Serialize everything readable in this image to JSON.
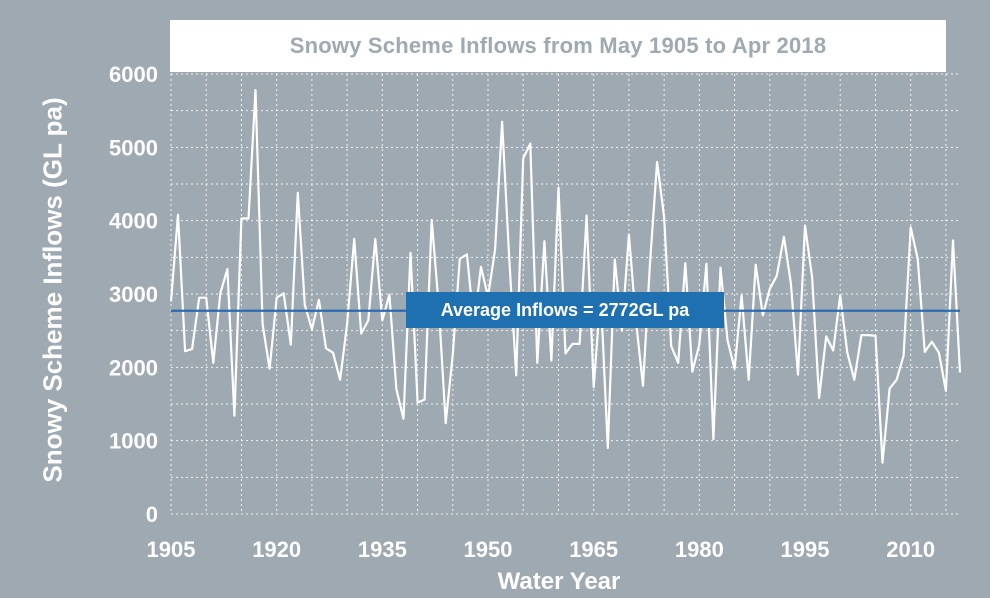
{
  "chart_data": {
    "type": "line",
    "title": "Snowy Scheme Inflows from May 1905 to Apr 2018",
    "xlabel": "Water Year",
    "ylabel": "Snowy Scheme Inflows (GL pa)",
    "xlim": [
      1905,
      2017
    ],
    "ylim": [
      0,
      6000
    ],
    "grid": true,
    "x_ticks": [
      1905,
      1920,
      1935,
      1950,
      1965,
      1980,
      1995,
      2010
    ],
    "y_ticks": [
      0,
      1000,
      2000,
      3000,
      4000,
      5000,
      6000
    ],
    "x_tick_labels": [
      "1905",
      "1920",
      "1935",
      "1950",
      "1965",
      "1980",
      "1995",
      "2010"
    ],
    "y_tick_labels": [
      "0",
      "1000",
      "2000",
      "3000",
      "4000",
      "5000",
      "6000"
    ],
    "series": [
      {
        "name": "",
        "x": [
          1905,
          1906,
          1907,
          1908,
          1909,
          1910,
          1911,
          1912,
          1913,
          1914,
          1915,
          1916,
          1917,
          1918,
          1919,
          1920,
          1921,
          1922,
          1923,
          1924,
          1925,
          1926,
          1927,
          1928,
          1929,
          1930,
          1931,
          1932,
          1933,
          1934,
          1935,
          1936,
          1937,
          1938,
          1939,
          1940,
          1941,
          1942,
          1943,
          1944,
          1945,
          1946,
          1947,
          1948,
          1949,
          1950,
          1951,
          1952,
          1953,
          1954,
          1955,
          1956,
          1957,
          1958,
          1959,
          1960,
          1961,
          1962,
          1963,
          1964,
          1965,
          1966,
          1967,
          1968,
          1969,
          1970,
          1971,
          1972,
          1973,
          1974,
          1975,
          1976,
          1977,
          1978,
          1979,
          1980,
          1981,
          1982,
          1983,
          1984,
          1985,
          1986,
          1987,
          1988,
          1989,
          1990,
          1991,
          1992,
          1993,
          1994,
          1995,
          1996,
          1997,
          1998,
          1999,
          2000,
          2001,
          2002,
          2003,
          2004,
          2005,
          2006,
          2007,
          2008,
          2009,
          2010,
          2011,
          2012,
          2013,
          2014,
          2015,
          2016,
          2017
        ],
        "values": [
          2900,
          4080,
          2220,
          2250,
          2950,
          2950,
          2060,
          3010,
          3340,
          1340,
          4030,
          4030,
          5780,
          2590,
          1980,
          2950,
          3010,
          2310,
          4380,
          2850,
          2520,
          2920,
          2260,
          2200,
          1830,
          2590,
          3750,
          2460,
          2640,
          3750,
          2640,
          2990,
          1700,
          1300,
          3560,
          1520,
          1560,
          4010,
          2840,
          1240,
          2180,
          3480,
          3540,
          2590,
          3370,
          2960,
          3610,
          5350,
          3520,
          1890,
          4850,
          5050,
          2060,
          3720,
          2090,
          4450,
          2190,
          2320,
          2320,
          4070,
          1730,
          3010,
          900,
          3470,
          2500,
          3810,
          2640,
          1750,
          3420,
          4800,
          4050,
          2290,
          2060,
          3420,
          1940,
          2310,
          3410,
          1020,
          3360,
          2370,
          1980,
          2980,
          1830,
          3400,
          2710,
          3070,
          3250,
          3780,
          3140,
          1900,
          3930,
          3230,
          1580,
          2420,
          2230,
          2980,
          2200,
          1830,
          2440,
          2440,
          2430,
          700,
          1710,
          1830,
          2160,
          3910,
          3480,
          2210,
          2350,
          2200,
          1680,
          3730,
          1930
        ]
      }
    ],
    "reference_line": {
      "label": "Average Inflows = 2772GL pa",
      "value": 2772
    }
  },
  "colors": {
    "background": "#9ea9b2",
    "line": "#ffffff",
    "average_line": "#2b6cb0",
    "average_box": "#1f70b0",
    "title_box": "#ffffff",
    "title_text": "#9ea9b2"
  }
}
